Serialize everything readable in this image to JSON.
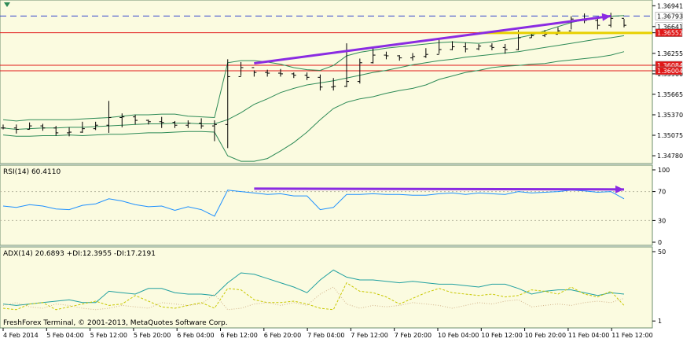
{
  "chart_data": [
    {
      "type": "line",
      "title": "",
      "subtitle": "",
      "price_axis": {
        "ticks": [
          "1.36941",
          "1.36641",
          "1.36552",
          "1.36255",
          "1.36084",
          "1.36004",
          "1.35960",
          "1.35665",
          "1.35370",
          "1.35075",
          "1.34780"
        ],
        "range": [
          1.3469,
          1.3699
        ]
      },
      "price_labels": [
        {
          "text": "1.36793",
          "price": 1.36793,
          "bg": "#ffffff",
          "fg": "#000000"
        },
        {
          "text": "1.36641",
          "price": 1.36641,
          "bg": "#ffffff",
          "fg": "#000000"
        },
        {
          "text": "1.36552",
          "price": 1.36552,
          "bg": "#e01818",
          "fg": "#ffffff"
        },
        {
          "text": "1.36084",
          "price": 1.36084,
          "bg": "#e01818",
          "fg": "#ffffff"
        },
        {
          "text": "1.36004",
          "price": 1.36004,
          "bg": "#e01818",
          "fg": "#ffffff"
        }
      ],
      "horizontal_lines": [
        {
          "price": 1.36793,
          "color": "#3344cc",
          "style": "dashed"
        },
        {
          "price": 1.36552,
          "color": "#e01818",
          "style": "solid"
        },
        {
          "price": 1.36084,
          "color": "#e01818",
          "style": "solid"
        },
        {
          "price": 1.36004,
          "color": "#e01818",
          "style": "solid"
        }
      ],
      "yellow_line": {
        "price": 1.3655,
        "x_start": 36,
        "x_end": 46,
        "color": "#e8d000"
      },
      "trend_arrow": {
        "x_start": 19,
        "y_start": 1.36112,
        "x_end": 46,
        "y_end": 1.36793,
        "color": "#8a2be2"
      },
      "series": [
        {
          "name": "",
          "style": "bars",
          "color": "#000000",
          "close": [
            1.3518,
            1.3516,
            1.3521,
            1.3518,
            1.3511,
            1.3512,
            1.3517,
            1.3522,
            1.3533,
            1.3534,
            1.3529,
            1.3527,
            1.3526,
            1.3522,
            1.3525,
            1.3521,
            1.3523,
            1.3592,
            1.3605,
            1.3598,
            1.3597,
            1.3596,
            1.3594,
            1.3591,
            1.3577,
            1.3578,
            1.3585,
            1.3612,
            1.3623,
            1.3622,
            1.3619,
            1.3621,
            1.3624,
            1.3631,
            1.3635,
            1.3632,
            1.3636,
            1.3634,
            1.3631,
            1.3648,
            1.3651,
            1.3653,
            1.3658,
            1.3675,
            1.3673,
            1.3666,
            1.3676,
            1.3666
          ],
          "high": [
            1.3523,
            1.3523,
            1.3526,
            1.3524,
            1.3521,
            1.3519,
            1.3527,
            1.3527,
            1.3557,
            1.3539,
            1.3537,
            1.353,
            1.3534,
            1.3528,
            1.3529,
            1.3532,
            1.3529,
            1.3617,
            1.3613,
            1.3601,
            1.3602,
            1.3603,
            1.3598,
            1.3598,
            1.3595,
            1.359,
            1.364,
            1.3618,
            1.3633,
            1.3628,
            1.3623,
            1.3626,
            1.3633,
            1.3645,
            1.3643,
            1.3641,
            1.3639,
            1.364,
            1.3639,
            1.3659,
            1.3655,
            1.3659,
            1.3663,
            1.3679,
            1.3683,
            1.3677,
            1.3684,
            1.3675
          ],
          "low": [
            1.3516,
            1.351,
            1.3516,
            1.3514,
            1.3507,
            1.3506,
            1.3511,
            1.3515,
            1.3511,
            1.3519,
            1.3523,
            1.3523,
            1.3518,
            1.3518,
            1.3518,
            1.3517,
            1.3499,
            1.3489,
            1.3593,
            1.3592,
            1.3592,
            1.3592,
            1.359,
            1.3587,
            1.3572,
            1.3572,
            1.3577,
            1.3582,
            1.3611,
            1.3617,
            1.3615,
            1.3615,
            1.3619,
            1.3625,
            1.363,
            1.3627,
            1.363,
            1.363,
            1.3625,
            1.363,
            1.3648,
            1.3649,
            1.3655,
            1.366,
            1.3669,
            1.366,
            1.3663,
            1.3663
          ]
        },
        {
          "name": "",
          "style": "band-upper",
          "color": "#2e8b57",
          "values": [
            1.353,
            1.3528,
            1.353,
            1.353,
            1.353,
            1.353,
            1.3531,
            1.3532,
            1.3533,
            1.3535,
            1.3537,
            1.3537,
            1.3538,
            1.3538,
            1.3535,
            1.3534,
            1.3533,
            1.3612,
            1.3615,
            1.3615,
            1.3613,
            1.361,
            1.3605,
            1.3602,
            1.3601,
            1.3608,
            1.3622,
            1.3627,
            1.363,
            1.3633,
            1.3635,
            1.3637,
            1.3639,
            1.3641,
            1.3642,
            1.3641,
            1.364,
            1.3642,
            1.3645,
            1.3648,
            1.3652,
            1.3658,
            1.3664,
            1.367,
            1.3674,
            1.3677,
            1.3679,
            1.368
          ]
        },
        {
          "name": "",
          "style": "band-mid",
          "color": "#2e8b57",
          "values": [
            1.3518,
            1.3516,
            1.3517,
            1.3518,
            1.3518,
            1.3519,
            1.3519,
            1.352,
            1.3521,
            1.3522,
            1.3523,
            1.3524,
            1.3524,
            1.3525,
            1.3525,
            1.3524,
            1.3524,
            1.353,
            1.354,
            1.3552,
            1.356,
            1.3569,
            1.3575,
            1.358,
            1.3583,
            1.3586,
            1.359,
            1.3594,
            1.3598,
            1.3601,
            1.3605,
            1.3609,
            1.3612,
            1.3615,
            1.3617,
            1.362,
            1.3622,
            1.3624,
            1.3626,
            1.3628,
            1.3631,
            1.3634,
            1.3637,
            1.364,
            1.3643,
            1.3646,
            1.3648,
            1.3651
          ]
        },
        {
          "name": "",
          "style": "band-lower",
          "color": "#2e8b57",
          "values": [
            1.3508,
            1.3506,
            1.3506,
            1.3507,
            1.3507,
            1.3508,
            1.3507,
            1.3508,
            1.3509,
            1.3509,
            1.351,
            1.3511,
            1.3511,
            1.3512,
            1.3513,
            1.3513,
            1.3512,
            1.3478,
            1.347,
            1.347,
            1.3474,
            1.3485,
            1.3497,
            1.3512,
            1.353,
            1.3546,
            1.3555,
            1.356,
            1.3563,
            1.3568,
            1.3572,
            1.3575,
            1.358,
            1.3588,
            1.3593,
            1.3598,
            1.3601,
            1.3605,
            1.3607,
            1.3608,
            1.361,
            1.3611,
            1.3614,
            1.3616,
            1.3618,
            1.362,
            1.3623,
            1.3628
          ]
        }
      ]
    },
    {
      "type": "line",
      "legend": "RSI(14) 60.4110",
      "levels": [
        {
          "value": 70,
          "label": "70"
        },
        {
          "value": 30,
          "label": "30"
        }
      ],
      "axis_ticks": [
        "100",
        "70",
        "30",
        "0"
      ],
      "range": [
        0,
        100
      ],
      "trend_arrow": {
        "x_start": 19,
        "y_start": 74,
        "x_end": 47,
        "y_end": 73,
        "color": "#8a2be2"
      },
      "series": [
        {
          "name": "RSI(14)",
          "color": "#1e90ff",
          "values": [
            50,
            48,
            52,
            50,
            46,
            45,
            51,
            53,
            60,
            57,
            52,
            49,
            50,
            44,
            49,
            45,
            36,
            72,
            70,
            68,
            66,
            67,
            64,
            64,
            45,
            48,
            66,
            66,
            67,
            66,
            66,
            65,
            65,
            67,
            68,
            66,
            68,
            67,
            66,
            70,
            68,
            69,
            70,
            72,
            71,
            69,
            70,
            60
          ]
        }
      ]
    },
    {
      "type": "line",
      "legend": "ADX(14) 20.6893 +DI:12.3955 -DI:17.2191",
      "axis_ticks": [
        "50",
        "1"
      ],
      "range": [
        0,
        50
      ],
      "series": [
        {
          "name": "ADX(14)",
          "color": "#20a0a0",
          "style": "solid",
          "values": [
            13,
            12,
            13,
            14,
            15,
            16,
            14,
            14,
            22,
            21,
            20,
            24,
            24,
            21,
            20,
            20,
            19,
            28,
            35,
            34,
            31,
            28,
            25,
            21,
            30,
            37,
            32,
            30,
            30,
            29,
            28,
            29,
            28,
            27,
            27,
            26,
            25,
            27,
            27,
            24,
            20,
            22,
            23,
            23,
            21,
            19,
            21,
            20
          ]
        },
        {
          "name": "+DI",
          "color": "#c8c800",
          "style": "dashed",
          "values": [
            10,
            9,
            13,
            14,
            9,
            11,
            13,
            15,
            12,
            13,
            19,
            15,
            11,
            10,
            12,
            14,
            10,
            24,
            23,
            16,
            14,
            14,
            15,
            13,
            10,
            9,
            28,
            22,
            21,
            18,
            13,
            17,
            21,
            24,
            21,
            20,
            19,
            20,
            18,
            19,
            23,
            22,
            20,
            25,
            20,
            18,
            22,
            12
          ]
        },
        {
          "name": "-DI",
          "color": "#d2b48c",
          "style": "dotted",
          "values": [
            12,
            14,
            11,
            10,
            13,
            12,
            10,
            9,
            10,
            12,
            11,
            10,
            14,
            13,
            12,
            13,
            20,
            9,
            10,
            13,
            14,
            12,
            14,
            12,
            20,
            25,
            13,
            10,
            12,
            11,
            12,
            14,
            13,
            12,
            10,
            12,
            14,
            13,
            15,
            16,
            11,
            12,
            13,
            12,
            14,
            15,
            14,
            17
          ]
        }
      ]
    }
  ],
  "time_axis": {
    "labels": [
      "4 Feb 2014",
      "5 Feb 04:00",
      "5 Feb 12:00",
      "5 Feb 20:00",
      "6 Feb 04:00",
      "6 Feb 12:00",
      "6 Feb 20:00",
      "7 Feb 04:00",
      "7 Feb 12:00",
      "7 Feb 20:00",
      "10 Feb 04:00",
      "10 Feb 12:00",
      "10 Feb 20:00",
      "11 Feb 04:00",
      "11 Feb 12:00"
    ]
  },
  "watermark": "FreshForex Terminal, © 2001-2013, MetaQuotes Software Corp.",
  "colors": {
    "background": "#fbfbe0",
    "grid_frame": "#6e8f6e",
    "axis_text": "#000000"
  }
}
